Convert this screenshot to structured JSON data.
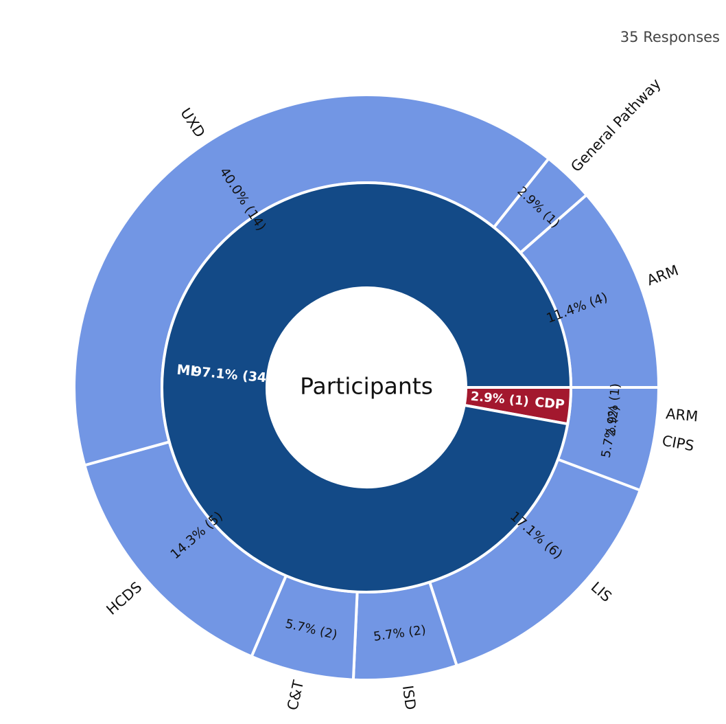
{
  "responses_label": "35 Responses",
  "center_label": "Participants",
  "colors": {
    "inner_mi": "#134a87",
    "inner_cdp": "#a3182e",
    "outer_mi": "#7296e4",
    "outer_cdp": "#d97880",
    "separator": "#ffffff"
  },
  "chart_data": {
    "type": "sunburst",
    "total": 35,
    "start_direction": "east",
    "direction": "clockwise",
    "inner": [
      {
        "name": "CDP",
        "value": 1,
        "label": "2.9% (1)"
      },
      {
        "name": "MI",
        "value": 34,
        "label": "97.1% (34)"
      }
    ],
    "outer": [
      {
        "name": "ARM",
        "parent": "CDP",
        "value": 1,
        "label": "2.9% (1)"
      },
      {
        "name": "LIS",
        "parent": "MI",
        "value": 6,
        "label": "17.1% (6)"
      },
      {
        "name": "ISD",
        "parent": "MI",
        "value": 2,
        "label": "5.7% (2)"
      },
      {
        "name": "C&T",
        "parent": "MI",
        "value": 2,
        "label": "5.7% (2)"
      },
      {
        "name": "HCDS",
        "parent": "MI",
        "value": 5,
        "label": "14.3% (5)"
      },
      {
        "name": "UXD",
        "parent": "MI",
        "value": 14,
        "label": "40.0% (14)"
      },
      {
        "name": "General Pathway",
        "parent": "MI",
        "value": 1,
        "label": "2.9% (1)"
      },
      {
        "name": "ARM",
        "parent": "MI",
        "value": 4,
        "label": "11.4% (4)"
      },
      {
        "name": "CIPS",
        "parent": "MI",
        "value": 2,
        "label": "5.7% (2)"
      }
    ]
  }
}
